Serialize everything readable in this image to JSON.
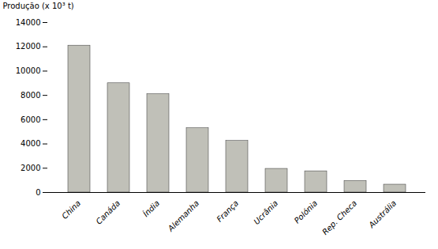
{
  "chart_data": {
    "type": "bar",
    "ylabel": "Produção (x 10³ t)",
    "categories": [
      "China",
      "Canáda",
      "Índia",
      "Alemanha",
      "França",
      "Ucrânia",
      "Polónia",
      "Rep. Checa",
      "Austrália"
    ],
    "values": [
      12100,
      9000,
      8100,
      5300,
      4250,
      1950,
      1750,
      950,
      650
    ],
    "color": "#c0c0b8",
    "ylim": [
      0,
      14000
    ],
    "yticks": [
      0,
      2000,
      4000,
      6000,
      8000,
      10000,
      12000,
      14000
    ],
    "grid": false
  }
}
